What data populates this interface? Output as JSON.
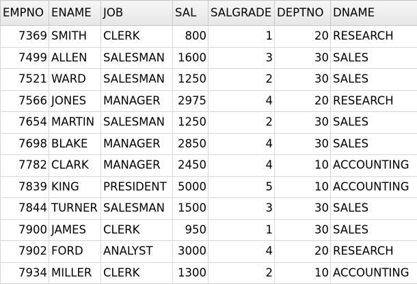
{
  "columns": [
    "EMPNO",
    "ENAME",
    "JOB",
    "SAL",
    "SALGRADE",
    "DEPTNO",
    "DNAME"
  ],
  "rows": [
    {
      "empno": "7369",
      "ename": "SMITH",
      "job": "CLERK",
      "sal": "800",
      "salgrade": "1",
      "deptno": "20",
      "dname": "RESEARCH"
    },
    {
      "empno": "7499",
      "ename": "ALLEN",
      "job": "SALESMAN",
      "sal": "1600",
      "salgrade": "3",
      "deptno": "30",
      "dname": "SALES"
    },
    {
      "empno": "7521",
      "ename": "WARD",
      "job": "SALESMAN",
      "sal": "1250",
      "salgrade": "2",
      "deptno": "30",
      "dname": "SALES"
    },
    {
      "empno": "7566",
      "ename": "JONES",
      "job": "MANAGER",
      "sal": "2975",
      "salgrade": "4",
      "deptno": "20",
      "dname": "RESEARCH"
    },
    {
      "empno": "7654",
      "ename": "MARTIN",
      "job": "SALESMAN",
      "sal": "1250",
      "salgrade": "2",
      "deptno": "30",
      "dname": "SALES"
    },
    {
      "empno": "7698",
      "ename": "BLAKE",
      "job": "MANAGER",
      "sal": "2850",
      "salgrade": "4",
      "deptno": "30",
      "dname": "SALES"
    },
    {
      "empno": "7782",
      "ename": "CLARK",
      "job": "MANAGER",
      "sal": "2450",
      "salgrade": "4",
      "deptno": "10",
      "dname": "ACCOUNTING"
    },
    {
      "empno": "7839",
      "ename": "KING",
      "job": "PRESIDENT",
      "sal": "5000",
      "salgrade": "5",
      "deptno": "10",
      "dname": "ACCOUNTING"
    },
    {
      "empno": "7844",
      "ename": "TURNER",
      "job": "SALESMAN",
      "sal": "1500",
      "salgrade": "3",
      "deptno": "30",
      "dname": "SALES"
    },
    {
      "empno": "7900",
      "ename": "JAMES",
      "job": "CLERK",
      "sal": "950",
      "salgrade": "1",
      "deptno": "30",
      "dname": "SALES"
    },
    {
      "empno": "7902",
      "ename": "FORD",
      "job": "ANALYST",
      "sal": "3000",
      "salgrade": "4",
      "deptno": "20",
      "dname": "RESEARCH"
    },
    {
      "empno": "7934",
      "ename": "MILLER",
      "job": "CLERK",
      "sal": "1300",
      "salgrade": "2",
      "deptno": "10",
      "dname": "ACCOUNTING"
    }
  ]
}
